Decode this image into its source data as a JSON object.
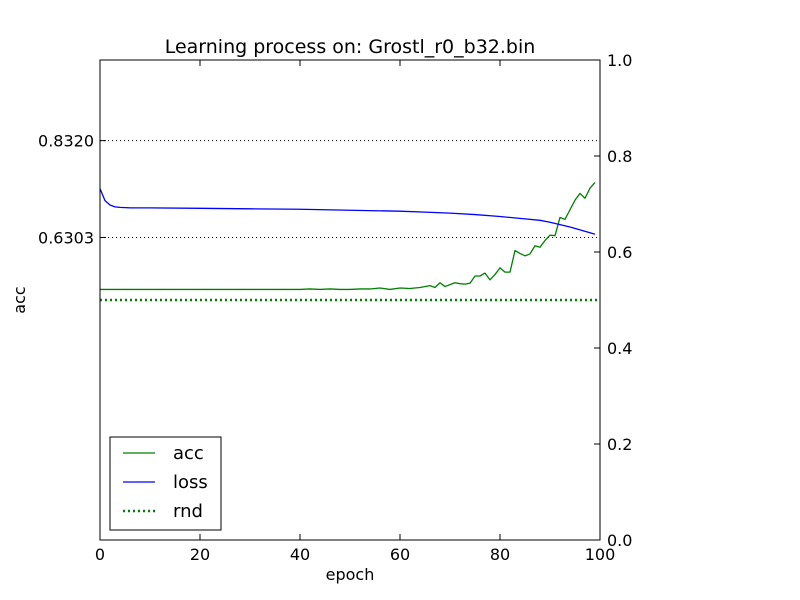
{
  "chart_data": {
    "type": "line",
    "title": "Learning process on: Grostl_r0_b32.bin",
    "xlabel": "epoch",
    "ylabel": "acc",
    "xlim": [
      0,
      100
    ],
    "ylim": [
      0,
      1
    ],
    "xticks": [
      "0",
      "20",
      "40",
      "60",
      "80",
      "100"
    ],
    "yticks_right": [
      "0.0",
      "0.2",
      "0.4",
      "0.6",
      "0.8",
      "1.0"
    ],
    "yticks_left": [
      {
        "label": "0.8320",
        "value": 0.832
      },
      {
        "label": "0.6303",
        "value": 0.6303
      }
    ],
    "grid": "horizontal dotted at left tick values",
    "legend": {
      "position": "lower-left",
      "entries": [
        "acc",
        "loss",
        "rnd"
      ]
    },
    "series": [
      {
        "name": "acc",
        "color": "#008000",
        "style": "solid",
        "x": [
          0,
          2,
          4,
          6,
          8,
          10,
          12,
          14,
          16,
          18,
          20,
          22,
          24,
          26,
          28,
          30,
          32,
          34,
          36,
          38,
          40,
          42,
          44,
          46,
          48,
          50,
          52,
          54,
          56,
          58,
          60,
          62,
          64,
          66,
          67,
          68,
          69,
          70,
          71,
          72,
          73,
          74,
          75,
          76,
          77,
          78,
          79,
          80,
          81,
          82,
          83,
          84,
          85,
          86,
          87,
          88,
          89,
          90,
          91,
          92,
          93,
          94,
          95,
          96,
          97,
          98,
          99
        ],
        "values": [
          0.522,
          0.522,
          0.522,
          0.522,
          0.522,
          0.522,
          0.522,
          0.522,
          0.522,
          0.522,
          0.522,
          0.522,
          0.522,
          0.522,
          0.522,
          0.522,
          0.522,
          0.522,
          0.522,
          0.522,
          0.522,
          0.523,
          0.522,
          0.523,
          0.522,
          0.522,
          0.523,
          0.523,
          0.525,
          0.522,
          0.525,
          0.524,
          0.526,
          0.53,
          0.526,
          0.536,
          0.528,
          0.532,
          0.536,
          0.534,
          0.533,
          0.535,
          0.55,
          0.55,
          0.556,
          0.542,
          0.553,
          0.567,
          0.558,
          0.558,
          0.603,
          0.597,
          0.592,
          0.596,
          0.613,
          0.61,
          0.624,
          0.635,
          0.634,
          0.672,
          0.668,
          0.688,
          0.708,
          0.722,
          0.712,
          0.733,
          0.745
        ]
      },
      {
        "name": "loss",
        "color": "#0000ff",
        "style": "solid",
        "x": [
          0,
          1,
          2,
          3,
          4,
          6,
          10,
          20,
          30,
          40,
          50,
          55,
          60,
          65,
          70,
          75,
          80,
          85,
          88,
          90,
          92,
          94,
          96,
          98,
          99
        ],
        "values": [
          0.732,
          0.707,
          0.698,
          0.694,
          0.693,
          0.692,
          0.692,
          0.691,
          0.69,
          0.689,
          0.687,
          0.686,
          0.685,
          0.683,
          0.681,
          0.678,
          0.674,
          0.669,
          0.666,
          0.662,
          0.657,
          0.652,
          0.646,
          0.64,
          0.637
        ]
      },
      {
        "name": "rnd",
        "color": "#008000",
        "style": "dotted",
        "x": [
          0,
          100
        ],
        "values": [
          0.5,
          0.5
        ]
      }
    ]
  }
}
